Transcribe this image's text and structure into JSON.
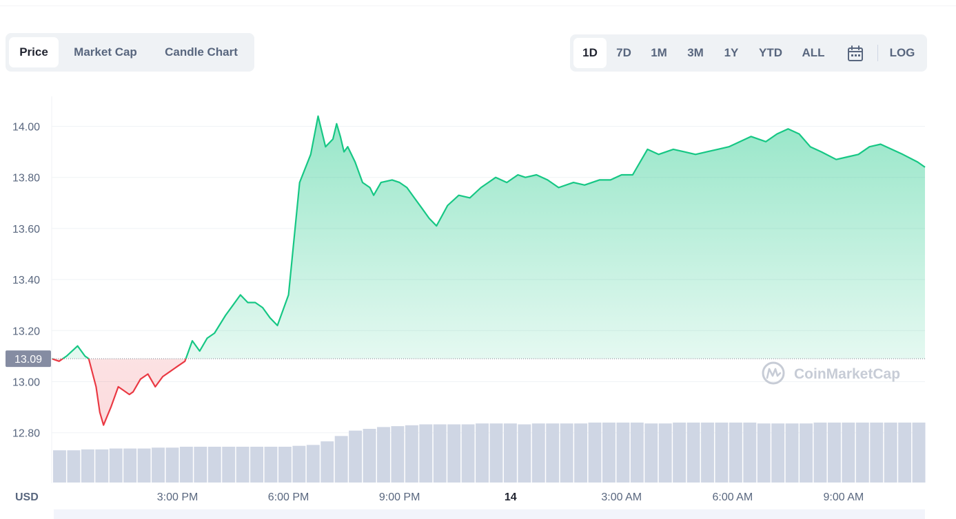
{
  "tabs": [
    {
      "label": "Price",
      "active": true
    },
    {
      "label": "Market Cap",
      "active": false
    },
    {
      "label": "Candle Chart",
      "active": false
    }
  ],
  "ranges": [
    {
      "label": "1D",
      "active": true
    },
    {
      "label": "7D",
      "active": false
    },
    {
      "label": "1M",
      "active": false
    },
    {
      "label": "3M",
      "active": false
    },
    {
      "label": "1Y",
      "active": false
    },
    {
      "label": "YTD",
      "active": false
    },
    {
      "label": "ALL",
      "active": false
    }
  ],
  "calendar_icon": "calendar-icon",
  "log_label": "LOG",
  "currency_label": "USD",
  "watermark": "CoinMarketCap",
  "colors": {
    "up": "#16c784",
    "down": "#ea3943",
    "volume": "#cfd6e4",
    "grid": "#eff2f5",
    "current_badge": "#858ca2"
  },
  "chart_data": {
    "type": "area",
    "ylim": [
      12.68,
      14.12
    ],
    "y_ticks": [
      12.8,
      13.0,
      13.2,
      13.4,
      13.6,
      13.8,
      14.0
    ],
    "y_tick_labels": [
      "12.80",
      "13.00",
      "13.20",
      "13.40",
      "13.60",
      "13.80",
      "14.00"
    ],
    "x_ticks": [
      "3:00 PM",
      "6:00 PM",
      "9:00 PM",
      "14",
      "3:00 AM",
      "6:00 AM",
      "9:00 AM"
    ],
    "x_tick_hours": [
      15,
      18,
      21,
      24,
      27,
      30,
      33
    ],
    "x_range_hours": [
      11.6,
      35.2
    ],
    "reference_price": 13.09,
    "reference_label": "13.09",
    "x_hours": [
      11.6,
      11.8,
      12.0,
      12.3,
      12.5,
      12.6,
      12.8,
      12.9,
      13.0,
      13.2,
      13.4,
      13.5,
      13.7,
      13.8,
      14.0,
      14.2,
      14.4,
      14.6,
      14.8,
      15.0,
      15.2,
      15.4,
      15.6,
      15.8,
      16.0,
      16.3,
      16.5,
      16.7,
      16.9,
      17.1,
      17.3,
      17.5,
      17.7,
      18.0,
      18.3,
      18.6,
      18.8,
      19.0,
      19.2,
      19.3,
      19.4,
      19.5,
      19.6,
      19.8,
      20.0,
      20.2,
      20.3,
      20.5,
      20.8,
      21.0,
      21.2,
      21.4,
      21.6,
      21.8,
      22.0,
      22.3,
      22.6,
      22.9,
      23.2,
      23.4,
      23.6,
      23.9,
      24.2,
      24.4,
      24.7,
      25.0,
      25.3,
      25.7,
      26.0,
      26.4,
      26.7,
      27.0,
      27.3,
      27.7,
      28.0,
      28.4,
      28.7,
      29.0,
      29.3,
      29.6,
      29.9,
      30.2,
      30.5,
      30.9,
      31.2,
      31.5,
      31.8,
      32.1,
      32.4,
      32.8,
      33.1,
      33.4,
      33.7,
      34.0,
      34.3,
      34.6,
      35.0,
      35.2
    ],
    "values": [
      13.09,
      13.08,
      13.1,
      13.14,
      13.1,
      13.09,
      12.98,
      12.88,
      12.83,
      12.9,
      12.98,
      12.97,
      12.95,
      12.96,
      13.01,
      13.03,
      12.98,
      13.02,
      13.04,
      13.06,
      13.08,
      13.16,
      13.12,
      13.17,
      13.19,
      13.26,
      13.3,
      13.34,
      13.31,
      13.31,
      13.29,
      13.25,
      13.22,
      13.34,
      13.78,
      13.89,
      14.04,
      13.92,
      13.95,
      14.01,
      13.96,
      13.9,
      13.92,
      13.86,
      13.78,
      13.76,
      13.73,
      13.78,
      13.79,
      13.78,
      13.76,
      13.72,
      13.68,
      13.64,
      13.61,
      13.69,
      13.73,
      13.72,
      13.76,
      13.78,
      13.8,
      13.78,
      13.81,
      13.8,
      13.81,
      13.79,
      13.76,
      13.78,
      13.77,
      13.79,
      13.79,
      13.81,
      13.81,
      13.91,
      13.89,
      13.91,
      13.9,
      13.89,
      13.9,
      13.91,
      13.92,
      13.94,
      13.96,
      13.94,
      13.97,
      13.99,
      13.97,
      13.92,
      13.9,
      13.87,
      13.88,
      13.89,
      13.92,
      13.93,
      13.91,
      13.89,
      13.86,
      13.84
    ],
    "volume_level": [
      0.36,
      0.36,
      0.37,
      0.37,
      0.38,
      0.38,
      0.38,
      0.39,
      0.39,
      0.4,
      0.4,
      0.4,
      0.4,
      0.4,
      0.4,
      0.4,
      0.4,
      0.41,
      0.42,
      0.46,
      0.52,
      0.58,
      0.6,
      0.62,
      0.63,
      0.64,
      0.65,
      0.65,
      0.65,
      0.65,
      0.66,
      0.66,
      0.66,
      0.65,
      0.66,
      0.66,
      0.66,
      0.66,
      0.67,
      0.67,
      0.67,
      0.67,
      0.66,
      0.66,
      0.67,
      0.67,
      0.67,
      0.67,
      0.67,
      0.67,
      0.66,
      0.66,
      0.66,
      0.66,
      0.67,
      0.67,
      0.67,
      0.67,
      0.67,
      0.67,
      0.67,
      0.67
    ]
  }
}
